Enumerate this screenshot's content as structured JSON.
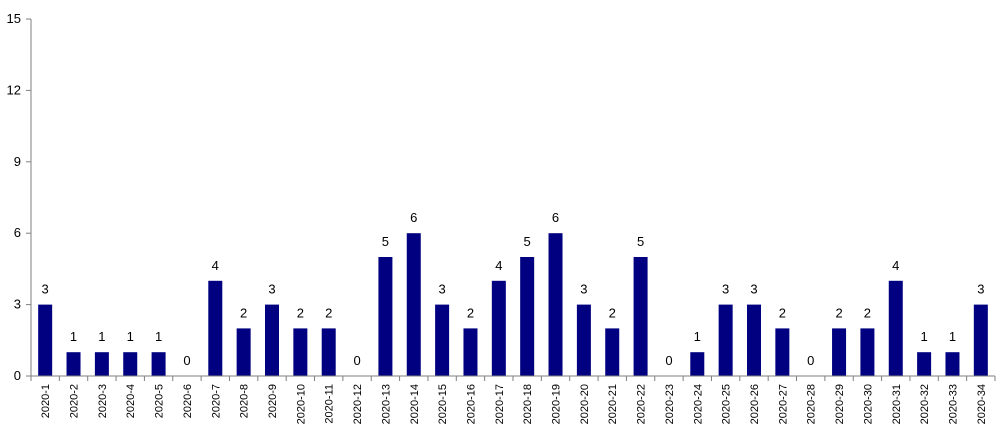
{
  "chart_data": {
    "type": "bar",
    "title": "",
    "xlabel": "",
    "ylabel": "",
    "ylim": [
      0,
      15
    ],
    "yticks": [
      0,
      3,
      6,
      9,
      12,
      15
    ],
    "grid": false,
    "legend": "none",
    "bar_color": "#000080",
    "categories": [
      "2020-1",
      "2020-2",
      "2020-3",
      "2020-4",
      "2020-5",
      "2020-6",
      "2020-7",
      "2020-8",
      "2020-9",
      "2020-10",
      "2020-11",
      "2020-12",
      "2020-13",
      "2020-14",
      "2020-15",
      "2020-16",
      "2020-17",
      "2020-18",
      "2020-19",
      "2020-20",
      "2020-21",
      "2020-22",
      "2020-23",
      "2020-24",
      "2020-25",
      "2020-26",
      "2020-27",
      "2020-28",
      "2020-29",
      "2020-30",
      "2020-31",
      "2020-32",
      "2020-33",
      "2020-34"
    ],
    "values": [
      3,
      1,
      1,
      1,
      1,
      0,
      4,
      2,
      3,
      2,
      2,
      0,
      5,
      6,
      3,
      2,
      4,
      5,
      6,
      3,
      2,
      5,
      0,
      1,
      3,
      3,
      2,
      0,
      2,
      2,
      4,
      1,
      1,
      3
    ]
  }
}
